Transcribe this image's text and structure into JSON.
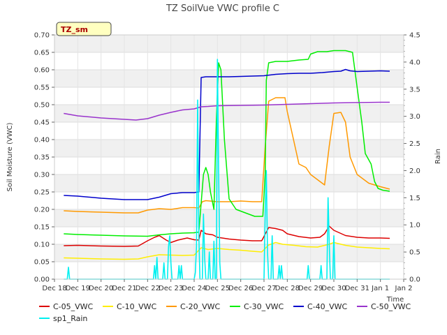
{
  "chart_data": {
    "type": "line",
    "title": "TZ SoilVue VWC profile C",
    "badge": "TZ_sm",
    "xlabel": "Time",
    "ylabel": "Soil Moisture (VWC)",
    "y2label": "Rain",
    "xlim": [
      0,
      15
    ],
    "ylim": [
      0,
      0.7
    ],
    "y2lim": [
      0,
      4.5
    ],
    "xticks": [
      {
        "x": 0,
        "label": "Dec 18"
      },
      {
        "x": 1,
        "label": "Dec 19"
      },
      {
        "x": 2,
        "label": "Dec 20"
      },
      {
        "x": 3,
        "label": "Dec 21"
      },
      {
        "x": 4,
        "label": "Dec 22"
      },
      {
        "x": 5,
        "label": "Dec 23"
      },
      {
        "x": 6,
        "label": "Dec 24"
      },
      {
        "x": 7,
        "label": "Dec 25"
      },
      {
        "x": 8,
        "label": "Dec 26"
      },
      {
        "x": 9,
        "label": "Dec 27"
      },
      {
        "x": 10,
        "label": "Dec 28"
      },
      {
        "x": 11,
        "label": "Dec 29"
      },
      {
        "x": 12,
        "label": "Dec 30"
      },
      {
        "x": 13,
        "label": "Dec 31"
      },
      {
        "x": 14,
        "label": "Jan 1"
      },
      {
        "x": 15,
        "label": "Jan 2"
      }
    ],
    "yticks": [
      0.0,
      0.05,
      0.1,
      0.15,
      0.2,
      0.25,
      0.3,
      0.35,
      0.4,
      0.45,
      0.5,
      0.55,
      0.6,
      0.65,
      0.7
    ],
    "ytick_labels": [
      "0.00",
      "0.05",
      "0.10",
      "0.15",
      "0.20",
      "0.25",
      "0.30",
      "0.35",
      "0.40",
      "0.45",
      "0.50",
      "0.55",
      "0.60",
      "0.65",
      "0.70"
    ],
    "y2ticks": [
      0.0,
      0.5,
      1.0,
      1.5,
      2.0,
      2.5,
      3.0,
      3.5,
      4.0,
      4.5
    ],
    "y2tick_labels": [
      "0.0",
      "0.5",
      "1.0",
      "1.5",
      "2.0",
      "2.5",
      "3.0",
      "3.5",
      "4.0",
      "4.5"
    ],
    "grid": true,
    "legend_position": "bottom",
    "series": [
      {
        "name": "C-05_VWC",
        "color": "#dd0000",
        "axis": "left",
        "points": [
          [
            0.4,
            0.096
          ],
          [
            1,
            0.097
          ],
          [
            2,
            0.095
          ],
          [
            3,
            0.094
          ],
          [
            3.6,
            0.095
          ],
          [
            4,
            0.11
          ],
          [
            4.3,
            0.12
          ],
          [
            4.5,
            0.125
          ],
          [
            4.8,
            0.112
          ],
          [
            5,
            0.105
          ],
          [
            5.3,
            0.112
          ],
          [
            5.7,
            0.118
          ],
          [
            6,
            0.113
          ],
          [
            6.2,
            0.112
          ],
          [
            6.3,
            0.14
          ],
          [
            6.5,
            0.13
          ],
          [
            6.8,
            0.127
          ],
          [
            7,
            0.12
          ],
          [
            7.5,
            0.115
          ],
          [
            8,
            0.112
          ],
          [
            8.5,
            0.11
          ],
          [
            8.9,
            0.11
          ],
          [
            9.2,
            0.148
          ],
          [
            9.5,
            0.145
          ],
          [
            9.8,
            0.14
          ],
          [
            10,
            0.13
          ],
          [
            10.5,
            0.122
          ],
          [
            11,
            0.118
          ],
          [
            11.4,
            0.12
          ],
          [
            11.6,
            0.13
          ],
          [
            11.8,
            0.152
          ],
          [
            12,
            0.14
          ],
          [
            12.5,
            0.125
          ],
          [
            13,
            0.12
          ],
          [
            13.5,
            0.118
          ],
          [
            14,
            0.118
          ],
          [
            14.4,
            0.117
          ]
        ]
      },
      {
        "name": "C-10_VWC",
        "color": "#ffee00",
        "axis": "left",
        "points": [
          [
            0.4,
            0.061
          ],
          [
            1,
            0.06
          ],
          [
            2,
            0.058
          ],
          [
            3,
            0.057
          ],
          [
            3.6,
            0.058
          ],
          [
            4,
            0.064
          ],
          [
            4.5,
            0.07
          ],
          [
            5,
            0.069
          ],
          [
            5.5,
            0.068
          ],
          [
            6,
            0.069
          ],
          [
            6.3,
            0.09
          ],
          [
            6.6,
            0.085
          ],
          [
            7,
            0.088
          ],
          [
            7.5,
            0.085
          ],
          [
            8,
            0.083
          ],
          [
            8.5,
            0.08
          ],
          [
            8.9,
            0.078
          ],
          [
            9.2,
            0.098
          ],
          [
            9.5,
            0.105
          ],
          [
            9.8,
            0.1
          ],
          [
            10.3,
            0.097
          ],
          [
            10.8,
            0.093
          ],
          [
            11.3,
            0.092
          ],
          [
            11.8,
            0.1
          ],
          [
            12,
            0.105
          ],
          [
            12.5,
            0.097
          ],
          [
            13,
            0.092
          ],
          [
            13.5,
            0.09
          ],
          [
            14,
            0.088
          ],
          [
            14.4,
            0.087
          ]
        ]
      },
      {
        "name": "C-20_VWC",
        "color": "#ff9900",
        "axis": "left",
        "points": [
          [
            0.4,
            0.196
          ],
          [
            1,
            0.194
          ],
          [
            2,
            0.192
          ],
          [
            3,
            0.19
          ],
          [
            3.6,
            0.19
          ],
          [
            4,
            0.198
          ],
          [
            4.5,
            0.202
          ],
          [
            5,
            0.2
          ],
          [
            5.5,
            0.205
          ],
          [
            6,
            0.205
          ],
          [
            6.2,
            0.204
          ],
          [
            6.35,
            0.222
          ],
          [
            6.5,
            0.225
          ],
          [
            7,
            0.222
          ],
          [
            7.5,
            0.222
          ],
          [
            8,
            0.224
          ],
          [
            8.5,
            0.222
          ],
          [
            8.9,
            0.222
          ],
          [
            9.05,
            0.38
          ],
          [
            9.2,
            0.51
          ],
          [
            9.5,
            0.52
          ],
          [
            9.9,
            0.52
          ],
          [
            10,
            0.48
          ],
          [
            10.2,
            0.42
          ],
          [
            10.5,
            0.33
          ],
          [
            10.8,
            0.32
          ],
          [
            11,
            0.3
          ],
          [
            11.4,
            0.28
          ],
          [
            11.6,
            0.27
          ],
          [
            11.8,
            0.38
          ],
          [
            12,
            0.475
          ],
          [
            12.3,
            0.478
          ],
          [
            12.5,
            0.45
          ],
          [
            12.7,
            0.35
          ],
          [
            13,
            0.3
          ],
          [
            13.5,
            0.275
          ],
          [
            14,
            0.265
          ],
          [
            14.4,
            0.258
          ]
        ]
      },
      {
        "name": "C-30_VWC",
        "color": "#00ee00",
        "axis": "left",
        "points": [
          [
            0.4,
            0.13
          ],
          [
            1,
            0.128
          ],
          [
            2,
            0.126
          ],
          [
            3,
            0.124
          ],
          [
            4,
            0.123
          ],
          [
            4.5,
            0.127
          ],
          [
            5,
            0.13
          ],
          [
            5.5,
            0.132
          ],
          [
            6,
            0.133
          ],
          [
            6.2,
            0.135
          ],
          [
            6.4,
            0.3
          ],
          [
            6.5,
            0.32
          ],
          [
            6.6,
            0.3
          ],
          [
            6.7,
            0.25
          ],
          [
            6.85,
            0.2
          ],
          [
            6.95,
            0.45
          ],
          [
            7.05,
            0.62
          ],
          [
            7.15,
            0.6
          ],
          [
            7.3,
            0.4
          ],
          [
            7.5,
            0.23
          ],
          [
            7.8,
            0.2
          ],
          [
            8.2,
            0.19
          ],
          [
            8.6,
            0.18
          ],
          [
            8.95,
            0.18
          ],
          [
            9.05,
            0.3
          ],
          [
            9.1,
            0.57
          ],
          [
            9.2,
            0.62
          ],
          [
            9.5,
            0.624
          ],
          [
            10,
            0.624
          ],
          [
            10.5,
            0.628
          ],
          [
            10.9,
            0.63
          ],
          [
            11,
            0.645
          ],
          [
            11.3,
            0.652
          ],
          [
            11.7,
            0.652
          ],
          [
            12,
            0.655
          ],
          [
            12.5,
            0.655
          ],
          [
            12.8,
            0.65
          ],
          [
            13,
            0.55
          ],
          [
            13.2,
            0.45
          ],
          [
            13.35,
            0.36
          ],
          [
            13.6,
            0.33
          ],
          [
            13.75,
            0.28
          ],
          [
            13.9,
            0.26
          ],
          [
            14.1,
            0.255
          ],
          [
            14.4,
            0.252
          ]
        ]
      },
      {
        "name": "C-40_VWC",
        "color": "#0000cc",
        "axis": "left",
        "points": [
          [
            0.4,
            0.24
          ],
          [
            1,
            0.238
          ],
          [
            2,
            0.232
          ],
          [
            3,
            0.228
          ],
          [
            3.5,
            0.228
          ],
          [
            4,
            0.228
          ],
          [
            4.5,
            0.235
          ],
          [
            5,
            0.245
          ],
          [
            5.5,
            0.248
          ],
          [
            6,
            0.248
          ],
          [
            6.2,
            0.25
          ],
          [
            6.3,
            0.578
          ],
          [
            6.5,
            0.58
          ],
          [
            7,
            0.58
          ],
          [
            7.5,
            0.58
          ],
          [
            8,
            0.581
          ],
          [
            8.5,
            0.582
          ],
          [
            9,
            0.583
          ],
          [
            9.5,
            0.587
          ],
          [
            10,
            0.589
          ],
          [
            10.5,
            0.59
          ],
          [
            11,
            0.59
          ],
          [
            11.5,
            0.592
          ],
          [
            12,
            0.595
          ],
          [
            12.3,
            0.596
          ],
          [
            12.5,
            0.601
          ],
          [
            12.7,
            0.597
          ],
          [
            13,
            0.595
          ],
          [
            13.5,
            0.596
          ],
          [
            14,
            0.597
          ],
          [
            14.4,
            0.596
          ]
        ]
      },
      {
        "name": "C-50_VWC",
        "color": "#9933cc",
        "axis": "left",
        "points": [
          [
            0.4,
            0.475
          ],
          [
            1,
            0.468
          ],
          [
            2,
            0.462
          ],
          [
            3,
            0.458
          ],
          [
            3.5,
            0.456
          ],
          [
            4,
            0.46
          ],
          [
            4.5,
            0.47
          ],
          [
            5,
            0.478
          ],
          [
            5.5,
            0.485
          ],
          [
            6,
            0.488
          ],
          [
            6.2,
            0.492
          ],
          [
            6.3,
            0.494
          ],
          [
            6.6,
            0.495
          ],
          [
            7,
            0.497
          ],
          [
            8,
            0.498
          ],
          [
            9,
            0.499
          ],
          [
            10,
            0.501
          ],
          [
            11,
            0.503
          ],
          [
            12,
            0.505
          ],
          [
            13,
            0.506
          ],
          [
            14,
            0.507
          ],
          [
            14.4,
            0.507
          ]
        ]
      },
      {
        "name": "sp1_Rain",
        "color": "#00f0f0",
        "axis": "right",
        "points": [
          [
            0.4,
            0
          ],
          [
            0.55,
            0
          ],
          [
            0.6,
            0.22
          ],
          [
            0.65,
            0
          ],
          [
            4.25,
            0
          ],
          [
            4.3,
            0.25
          ],
          [
            4.35,
            0
          ],
          [
            4.4,
            0.4
          ],
          [
            4.45,
            0
          ],
          [
            4.65,
            0
          ],
          [
            4.7,
            0.3
          ],
          [
            4.75,
            0
          ],
          [
            4.85,
            0
          ],
          [
            4.9,
            0.6
          ],
          [
            4.95,
            0.8
          ],
          [
            5,
            0.3
          ],
          [
            5.05,
            0
          ],
          [
            5.3,
            0
          ],
          [
            5.35,
            0.25
          ],
          [
            5.4,
            0
          ],
          [
            5.45,
            0.25
          ],
          [
            5.5,
            0
          ],
          [
            6,
            0
          ],
          [
            6.05,
            0.12
          ],
          [
            6.1,
            0.6
          ],
          [
            6.15,
            3.3
          ],
          [
            6.2,
            0.8
          ],
          [
            6.25,
            0
          ],
          [
            6.35,
            0
          ],
          [
            6.4,
            1.2
          ],
          [
            6.45,
            0.4
          ],
          [
            6.5,
            0
          ],
          [
            6.6,
            0
          ],
          [
            6.65,
            0.5
          ],
          [
            6.7,
            0
          ],
          [
            6.8,
            0
          ],
          [
            6.85,
            0.7
          ],
          [
            6.9,
            0
          ],
          [
            6.95,
            0
          ],
          [
            7.0,
            4.05
          ],
          [
            7.05,
            2.0
          ],
          [
            7.1,
            0.3
          ],
          [
            7.15,
            0
          ],
          [
            9.0,
            0
          ],
          [
            9.05,
            1.2
          ],
          [
            9.1,
            2.0
          ],
          [
            9.15,
            0.5
          ],
          [
            9.2,
            0
          ],
          [
            9.3,
            0
          ],
          [
            9.35,
            0.8
          ],
          [
            9.4,
            0
          ],
          [
            9.6,
            0
          ],
          [
            9.65,
            0.25
          ],
          [
            9.7,
            0
          ],
          [
            9.75,
            0.25
          ],
          [
            9.8,
            0
          ],
          [
            10.85,
            0
          ],
          [
            10.9,
            0.25
          ],
          [
            10.95,
            0
          ],
          [
            11.4,
            0
          ],
          [
            11.45,
            0.25
          ],
          [
            11.5,
            0
          ],
          [
            11.7,
            0
          ],
          [
            11.75,
            1.5
          ],
          [
            11.8,
            0.7
          ],
          [
            11.85,
            0
          ],
          [
            11.95,
            0
          ],
          [
            12.0,
            0.8
          ],
          [
            12.05,
            0
          ],
          [
            14.4,
            0
          ]
        ]
      }
    ]
  }
}
